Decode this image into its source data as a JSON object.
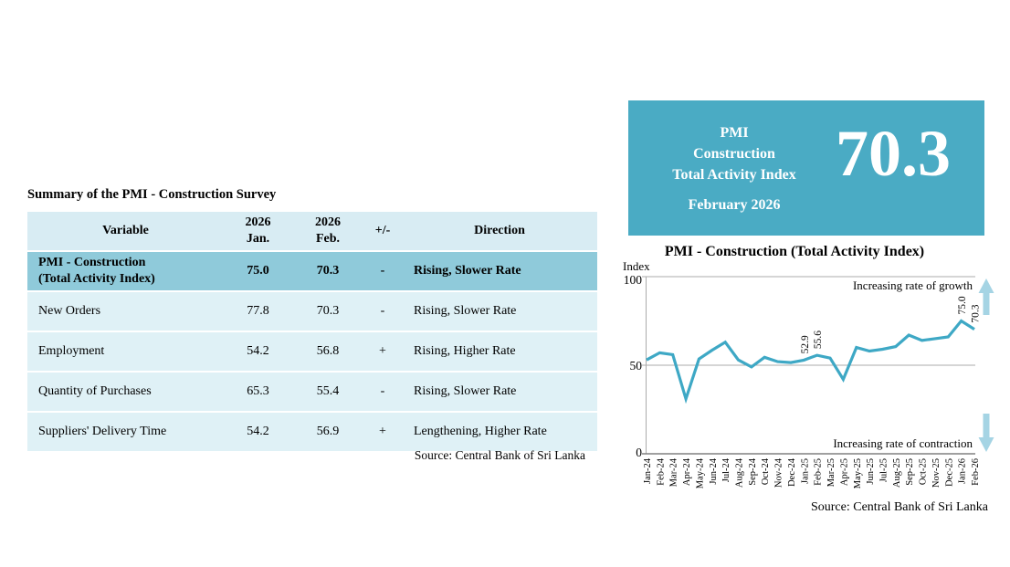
{
  "summary_table": {
    "title": "Summary of the PMI - Construction Survey",
    "columns": [
      "Variable",
      "2026\nJan.",
      "2026\nFeb.",
      "+/-",
      "Direction"
    ],
    "rows": [
      {
        "variable": "PMI - Construction\n(Total Activity Index)",
        "jan": "75.0",
        "feb": "70.3",
        "sign": "-",
        "direction": "Rising, Slower Rate",
        "highlight": true
      },
      {
        "variable": "New Orders",
        "jan": "77.8",
        "feb": "70.3",
        "sign": "-",
        "direction": "Rising, Slower Rate",
        "highlight": false
      },
      {
        "variable": "Employment",
        "jan": "54.2",
        "feb": "56.8",
        "sign": "+",
        "direction": "Rising, Higher Rate",
        "highlight": false
      },
      {
        "variable": "Quantity of Purchases",
        "jan": "65.3",
        "feb": "55.4",
        "sign": "-",
        "direction": "Rising, Slower Rate",
        "highlight": false
      },
      {
        "variable": "Suppliers' Delivery Time",
        "jan": "54.2",
        "feb": "56.9",
        "sign": "+",
        "direction": "Lengthening, Higher Rate",
        "highlight": false
      }
    ],
    "source": "Source: Central Bank of Sri Lanka",
    "colors": {
      "header_row": "#D8ECF3",
      "highlight_row": "#8FCADA",
      "data_row": "#DFF1F6"
    }
  },
  "headline_card": {
    "title_lines": [
      "PMI",
      "Construction",
      "Total Activity Index"
    ],
    "period": "February 2026",
    "value": "70.3",
    "bg_color": "#4AABC4",
    "text_color": "#FFFFFF"
  },
  "chart_data": {
    "type": "line",
    "title": "PMI - Construction (Total Activity Index)",
    "ylabel": "Index",
    "ylim": [
      0,
      100
    ],
    "yticks": [
      100,
      50,
      0
    ],
    "grid": "horizontal",
    "categories": [
      "Jan-24",
      "Feb-24",
      "Mar-24",
      "Apr-24",
      "May-24",
      "Jun-24",
      "Jul-24",
      "Aug-24",
      "Sep-24",
      "Oct-24",
      "Nov-24",
      "Dec-24",
      "Jan-25",
      "Feb-25",
      "Mar-25",
      "Apr-25",
      "May-25",
      "Jun-25",
      "Jul-25",
      "Aug-25",
      "Sep-25",
      "Oct-25",
      "Nov-25",
      "Dec-25",
      "Jan-26",
      "Feb-26"
    ],
    "series": [
      {
        "name": "PMI - Construction Total Activity Index",
        "values": [
          53,
          57,
          56,
          31,
          53.5,
          58.5,
          63,
          53,
          49,
          54.5,
          52,
          51.5,
          52.9,
          55.6,
          54,
          42,
          60,
          58,
          59,
          60.5,
          67,
          64,
          65,
          66,
          75.0,
          70.3
        ]
      }
    ],
    "point_labels": {
      "12": "52.9",
      "13": "55.6",
      "24": "75.0",
      "25": "70.3"
    },
    "annotations": {
      "growth": "Increasing rate of growth",
      "contraction": "Increasing rate of contraction"
    },
    "line_color": "#3EA8C5",
    "arrow_color": "#A5D4E4",
    "gridline_color": "#ABABAB",
    "axis_color": "#808080",
    "source": "Source: Central Bank of Sri Lanka"
  }
}
